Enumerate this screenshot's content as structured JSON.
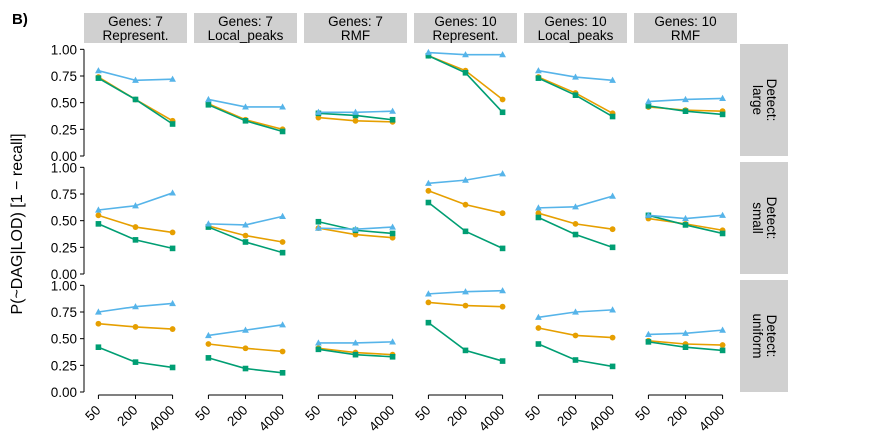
{
  "figure": {
    "panel_label": "B)",
    "ylabel": "P(~DAG|LOD)   [1 − recall]"
  },
  "chart_data": {
    "type": "line",
    "x_categories": [
      "50",
      "200",
      "4000"
    ],
    "y_ticks": [
      "0.00",
      "0.25",
      "0.50",
      "0.75",
      "1.00"
    ],
    "ylim": [
      0,
      1.05
    ],
    "grid": false,
    "legend": "none",
    "colors": {
      "orange": "#E69F00",
      "blue": "#56B4E9",
      "green": "#009E73"
    },
    "column_facets": [
      {
        "line1": "Genes: 7",
        "line2": "Represent."
      },
      {
        "line1": "Genes: 7",
        "line2": "Local_peaks"
      },
      {
        "line1": "Genes: 7",
        "line2": "RMF"
      },
      {
        "line1": "Genes: 10",
        "line2": "Represent."
      },
      {
        "line1": "Genes: 10",
        "line2": "Local_peaks"
      },
      {
        "line1": "Genes: 10",
        "line2": "RMF"
      }
    ],
    "row_facets": [
      {
        "line1": "Detect:",
        "line2": "large"
      },
      {
        "line1": "Detect:",
        "line2": "small"
      },
      {
        "line1": "Detect:",
        "line2": "uniform"
      }
    ],
    "panels": [
      [
        {
          "blue": [
            0.8,
            0.71,
            0.72
          ],
          "orange": [
            0.74,
            0.53,
            0.33
          ],
          "green": [
            0.73,
            0.53,
            0.3
          ]
        },
        {
          "blue": [
            0.53,
            0.46,
            0.46
          ],
          "orange": [
            0.49,
            0.34,
            0.25
          ],
          "green": [
            0.48,
            0.33,
            0.23
          ]
        },
        {
          "blue": [
            0.41,
            0.41,
            0.42
          ],
          "orange": [
            0.36,
            0.33,
            0.32
          ],
          "green": [
            0.4,
            0.38,
            0.34
          ]
        },
        {
          "blue": [
            0.97,
            0.95,
            0.95
          ],
          "orange": [
            0.94,
            0.8,
            0.53
          ],
          "green": [
            0.94,
            0.78,
            0.41
          ]
        },
        {
          "blue": [
            0.8,
            0.74,
            0.71
          ],
          "orange": [
            0.74,
            0.59,
            0.4
          ],
          "green": [
            0.73,
            0.57,
            0.37
          ]
        },
        {
          "blue": [
            0.51,
            0.53,
            0.54
          ],
          "orange": [
            0.46,
            0.43,
            0.42
          ],
          "green": [
            0.47,
            0.42,
            0.39
          ]
        }
      ],
      [
        {
          "blue": [
            0.6,
            0.64,
            0.76
          ],
          "orange": [
            0.55,
            0.44,
            0.39
          ],
          "green": [
            0.47,
            0.32,
            0.24
          ]
        },
        {
          "blue": [
            0.47,
            0.46,
            0.54
          ],
          "orange": [
            0.45,
            0.36,
            0.3
          ],
          "green": [
            0.44,
            0.3,
            0.2
          ]
        },
        {
          "blue": [
            0.43,
            0.42,
            0.44
          ],
          "orange": [
            0.43,
            0.37,
            0.34
          ],
          "green": [
            0.49,
            0.41,
            0.38
          ]
        },
        {
          "blue": [
            0.85,
            0.88,
            0.94
          ],
          "orange": [
            0.78,
            0.65,
            0.57
          ],
          "green": [
            0.67,
            0.4,
            0.24
          ]
        },
        {
          "blue": [
            0.62,
            0.63,
            0.73
          ],
          "orange": [
            0.57,
            0.47,
            0.42
          ],
          "green": [
            0.53,
            0.37,
            0.25
          ]
        },
        {
          "blue": [
            0.55,
            0.52,
            0.55
          ],
          "orange": [
            0.52,
            0.47,
            0.41
          ],
          "green": [
            0.55,
            0.46,
            0.38
          ]
        }
      ],
      [
        {
          "blue": [
            0.75,
            0.8,
            0.83
          ],
          "orange": [
            0.64,
            0.61,
            0.59
          ],
          "green": [
            0.42,
            0.28,
            0.23
          ]
        },
        {
          "blue": [
            0.53,
            0.58,
            0.63
          ],
          "orange": [
            0.45,
            0.41,
            0.38
          ],
          "green": [
            0.32,
            0.22,
            0.18
          ]
        },
        {
          "blue": [
            0.46,
            0.46,
            0.47
          ],
          "orange": [
            0.41,
            0.37,
            0.35
          ],
          "green": [
            0.4,
            0.35,
            0.33
          ]
        },
        {
          "blue": [
            0.92,
            0.94,
            0.95
          ],
          "orange": [
            0.84,
            0.81,
            0.8
          ],
          "green": [
            0.65,
            0.39,
            0.29
          ]
        },
        {
          "blue": [
            0.7,
            0.75,
            0.77
          ],
          "orange": [
            0.6,
            0.53,
            0.51
          ],
          "green": [
            0.45,
            0.3,
            0.24
          ]
        },
        {
          "blue": [
            0.54,
            0.55,
            0.58
          ],
          "orange": [
            0.48,
            0.45,
            0.44
          ],
          "green": [
            0.47,
            0.42,
            0.39
          ]
        }
      ]
    ]
  }
}
